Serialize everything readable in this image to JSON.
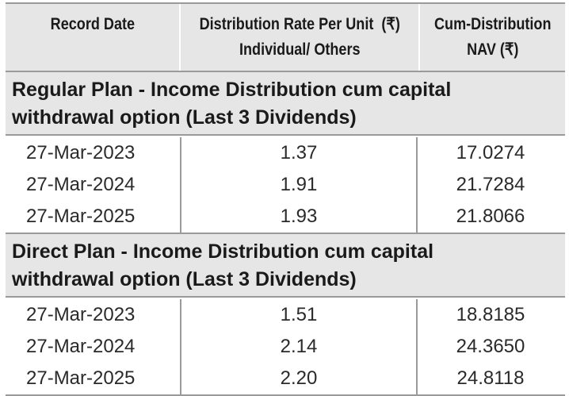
{
  "headers": {
    "record_date": "Record Date",
    "rate_line1": "Distribution Rate Per Unit  (₹)",
    "rate_line2": "Individual/ Others",
    "nav_line1": "Cum-Distribution",
    "nav_line2": "NAV (₹)"
  },
  "sections": [
    {
      "title_line1": "Regular Plan - Income Distribution cum capital",
      "title_line2": "withdrawal option (Last 3 Dividends)",
      "rows": [
        {
          "date": "27-Mar-2023",
          "rate": "1.37",
          "nav": "17.0274"
        },
        {
          "date": "27-Mar-2024",
          "rate": "1.91",
          "nav": "21.7284"
        },
        {
          "date": "27-Mar-2025",
          "rate": "1.93",
          "nav": "21.8066"
        }
      ]
    },
    {
      "title_line1": "Direct Plan - Income Distribution cum capital",
      "title_line2": "withdrawal option (Last 3 Dividends)",
      "rows": [
        {
          "date": "27-Mar-2023",
          "rate": "1.51",
          "nav": "18.8185"
        },
        {
          "date": "27-Mar-2024",
          "rate": "2.14",
          "nav": "24.3650"
        },
        {
          "date": "27-Mar-2025",
          "rate": "2.20",
          "nav": "24.8118"
        }
      ]
    }
  ]
}
